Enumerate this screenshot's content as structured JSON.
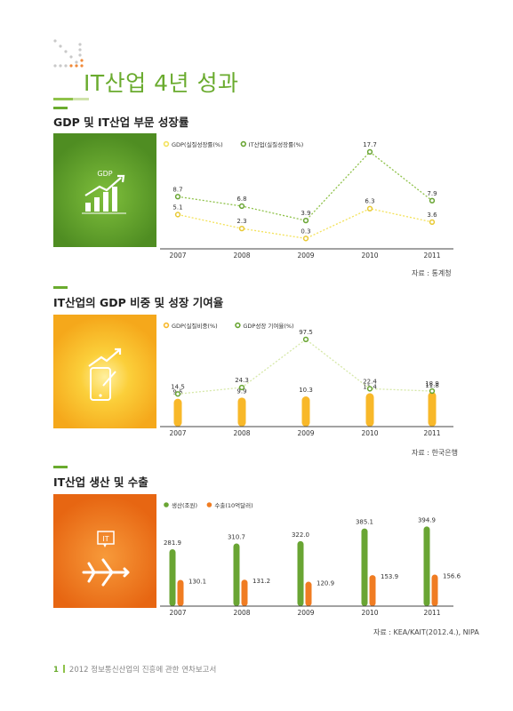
{
  "page": {
    "title": "IT산업 4년 성과",
    "footer_page": "1",
    "footer_text": "2012 정보통신산업의 진흥에 관한 연차보고서"
  },
  "sections": [
    {
      "title": "GDP 및 IT산업 부문 성장률",
      "source": "자료 : 통계청",
      "icon": "growth-bar-chart-icon",
      "icon_label": "GDP",
      "tile_color": "#5e9c28"
    },
    {
      "title": "IT산업의 GDP 비중 및 성장 기여율",
      "source": "자료 : 한국은행",
      "icon": "smartphone-growth-icon",
      "tile_color": "#f5a81b"
    },
    {
      "title": "IT산업 생산 및 수출",
      "source": "자료 : KEA/KAIT(2012.4.), NIPA",
      "icon": "airplane-export-icon",
      "tile_color": "#f07a1a"
    }
  ],
  "colors": {
    "accent_green": "#6aab2e",
    "line_yellow": "#f3e25a",
    "line_green": "#8fc24a",
    "bar_yellow": "#f8b829",
    "bar_green": "#69a533",
    "bar_orange": "#f07c22"
  },
  "chart_data": [
    {
      "type": "line",
      "categories": [
        "2007",
        "2008",
        "2009",
        "2010",
        "2011"
      ],
      "series": [
        {
          "name": "GDP(실질성장률(%)",
          "values": [
            5.1,
            2.3,
            0.3,
            6.3,
            3.6
          ]
        },
        {
          "name": "IT산업(실질성장률(%)",
          "values": [
            8.7,
            6.8,
            3.9,
            17.7,
            7.9
          ]
        }
      ],
      "legend": "top-left"
    },
    {
      "type": "bar",
      "categories": [
        "2007",
        "2008",
        "2009",
        "2010",
        "2011"
      ],
      "series": [
        {
          "name": "GDP(실질비중(%)",
          "values": [
            9.5,
            9.9,
            10.3,
            11.4,
            11.8
          ]
        },
        {
          "name": "GDP성장 기여율(%)",
          "values": [
            14.5,
            24.3,
            97.5,
            22.4,
            18.9
          ]
        }
      ],
      "legend": "top-left"
    },
    {
      "type": "bar",
      "categories": [
        "2007",
        "2008",
        "2009",
        "2010",
        "2011"
      ],
      "series": [
        {
          "name": "생산(조원)",
          "values": [
            281.9,
            310.7,
            322.0,
            385.1,
            394.9
          ]
        },
        {
          "name": "수출(10억달러)",
          "values": [
            130.1,
            131.2,
            120.9,
            153.9,
            156.6
          ]
        }
      ],
      "legend": "top-left"
    }
  ]
}
